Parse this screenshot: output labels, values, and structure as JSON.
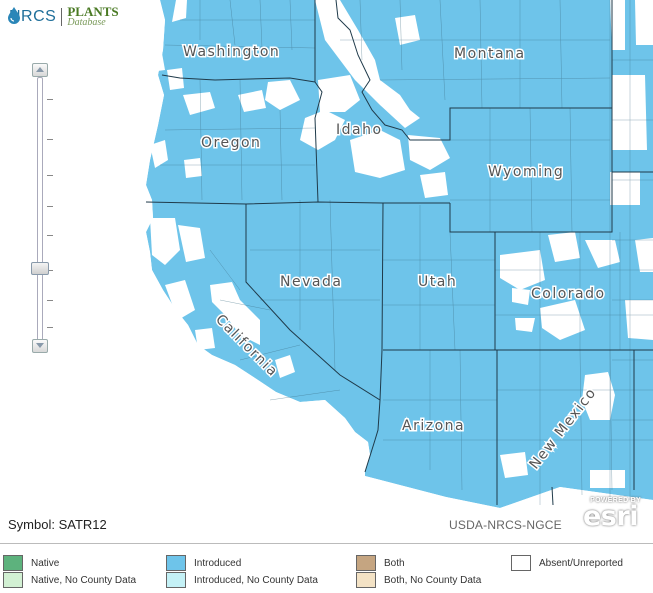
{
  "logo": {
    "agency": "NRCS",
    "db_top": "PLANTS",
    "db_bottom": "Database"
  },
  "map": {
    "states": [
      "Washington",
      "Montana",
      "Oregon",
      "Idaho",
      "Wyoming",
      "Nevada",
      "Utah",
      "Colorado",
      "California",
      "Arizona",
      "New Mexico"
    ]
  },
  "symbol_label": "Symbol: SATR12",
  "credit": "USDA-NRCS-NGCE",
  "esri": {
    "powered": "POWERED BY",
    "word": "esri"
  },
  "legend": [
    {
      "label": "Native",
      "color": "#5db27d"
    },
    {
      "label": "Native, No County Data",
      "color": "#d2f0d3"
    },
    {
      "label": "Introduced",
      "color": "#6ec4ea"
    },
    {
      "label": "Introduced, No County Data",
      "color": "#c4f1f6"
    },
    {
      "label": "Both",
      "color": "#c5a581"
    },
    {
      "label": "Both, No County Data",
      "color": "#f3e2c5"
    },
    {
      "label": "Absent/Unreported",
      "color": "#ffffff"
    }
  ],
  "colors": {
    "introduced": "#6ec4ea",
    "absent": "#ffffff",
    "boundary": "#1f3a4a"
  }
}
